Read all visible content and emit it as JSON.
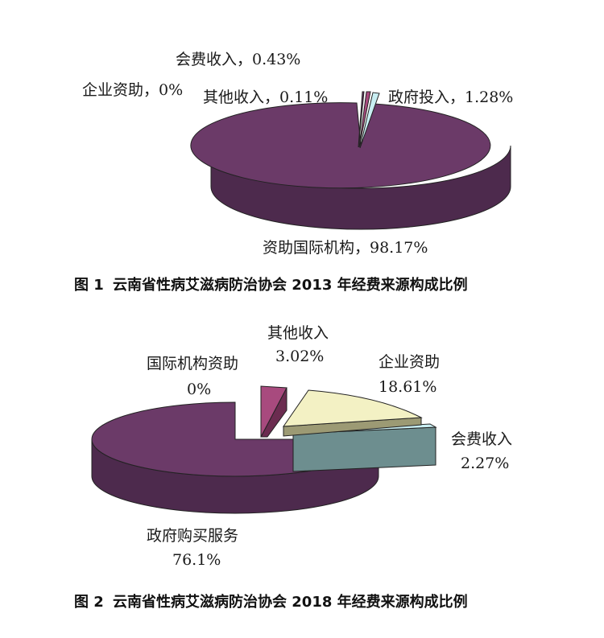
{
  "palette": {
    "top_main": "#6b3a68",
    "side_main": "#4d2a4d",
    "edge": "#222222",
    "light_cyan": "#c8eef2",
    "cyan_side": "#7a9fa4",
    "teal": "#6d8e8f",
    "cream": "#f3f1c4",
    "cream_side": "#9c9a74",
    "rose": "#a84a7e",
    "rose_side": "#6b2c50"
  },
  "chart_data": [
    {
      "type": "pie",
      "slices": [
        {
          "name": "资助国际机构",
          "value": 98.17
        },
        {
          "name": "政府投入",
          "value": 1.28
        },
        {
          "name": "会费收入",
          "value": 0.43
        },
        {
          "name": "其他收入",
          "value": 0.11
        },
        {
          "name": "企业资助",
          "value": 0
        }
      ],
      "labels": {
        "membership": "会费收入，0.43%",
        "enterprise": "企业资助，0%",
        "other": "其他收入，0.11%",
        "government": "政府投入，1.28%",
        "intl": "资助国际机构，98.17%"
      },
      "caption": {
        "number": "图 1",
        "text": "云南省性病艾滋病防治协会 2013 年经费来源构成比例"
      }
    },
    {
      "type": "pie",
      "slices": [
        {
          "name": "政府购买服务",
          "value": 76.1
        },
        {
          "name": "其他收入",
          "value": 3.02
        },
        {
          "name": "企业资助",
          "value": 18.61
        },
        {
          "name": "会费收入",
          "value": 2.27
        },
        {
          "name": "国际机构资助",
          "value": 0
        }
      ],
      "labels": {
        "other_name": "其他收入",
        "other_value": "3.02%",
        "intl_name": "国际机构资助",
        "intl_value": "0%",
        "enterprise_name": "企业资助",
        "enterprise_value": "18.61%",
        "membership_name": "会费收入",
        "membership_value": "2.27%",
        "gov_name": "政府购买服务",
        "gov_value": "76.1%"
      },
      "caption": {
        "number": "图 2",
        "text": "云南省性病艾滋病防治协会 2018 年经费来源构成比例"
      }
    }
  ]
}
